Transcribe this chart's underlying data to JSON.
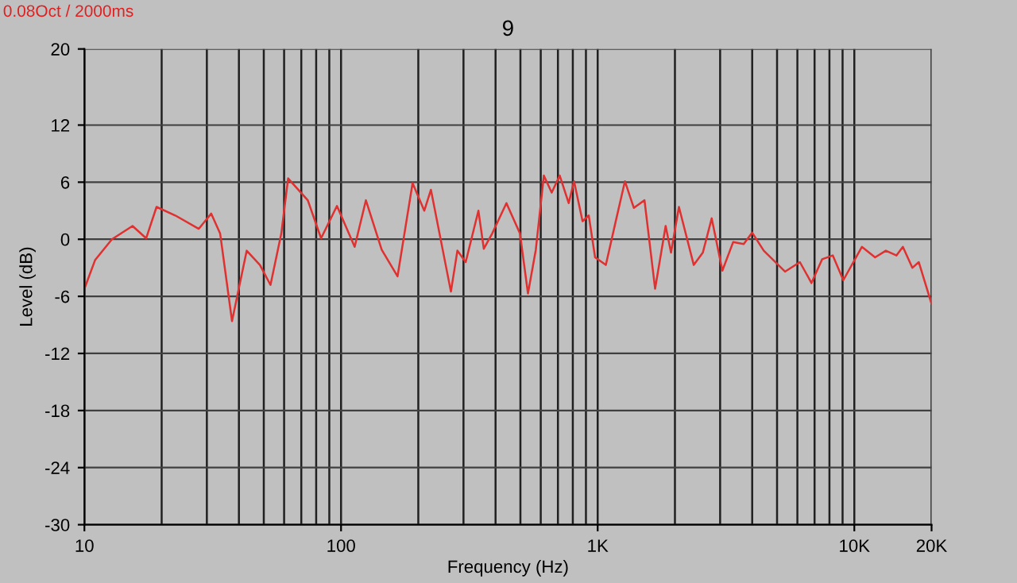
{
  "chart_data": {
    "type": "line",
    "title": "9",
    "xlabel": "Frequency (Hz)",
    "ylabel": "Level (dB)",
    "annotations": [
      "0.08Oct / 2000ms"
    ],
    "log": "x",
    "grid": true,
    "xlim": [
      10,
      20000
    ],
    "xticks": [
      10,
      100,
      {
        "value": 1000,
        "label": "1K"
      },
      {
        "value": 10000,
        "label": "10K"
      },
      {
        "value": 20000,
        "label": "20K"
      }
    ],
    "ylim": [
      -30,
      20
    ],
    "yticks": [
      -30,
      -24,
      -18,
      -12,
      -6,
      0,
      6,
      12,
      20
    ],
    "series": [
      {
        "color": "#e03030",
        "x": [
          10,
          11,
          12.8,
          15.4,
          17.4,
          19.1,
          22.6,
          27.9,
          31.2,
          33.8,
          37.6,
          42.9,
          48.3,
          53.1,
          58.5,
          62.2,
          74.2,
          83.6,
          96.4,
          113,
          125,
          144,
          166,
          190,
          211,
          224,
          268,
          284,
          306,
          343,
          360,
          388,
          441,
          498,
          535,
          574,
          617,
          662,
          711,
          771,
          809,
          873,
          923,
          977,
          1076,
          1183,
          1277,
          1383,
          1522,
          1674,
          1840,
          1931,
          2073,
          2368,
          2569,
          2782,
          3061,
          3371,
          3707,
          4000,
          4438,
          5369,
          6136,
          6810,
          7490,
          8240,
          9060,
          10700,
          12050,
          13270,
          14600,
          15460,
          16840,
          17830,
          20000
        ],
        "values": [
          -5.2,
          -2.2,
          0,
          1.4,
          0.1,
          3.4,
          2.5,
          1.1,
          2.7,
          0.6,
          -8.6,
          -1.2,
          -2.7,
          -4.8,
          0.6,
          6.4,
          4.1,
          0.1,
          3.5,
          -0.8,
          4.1,
          -1.1,
          -3.9,
          5.9,
          3.0,
          5.2,
          -5.5,
          -1.2,
          -2.4,
          3.0,
          -1.0,
          0.6,
          3.8,
          0.6,
          -5.7,
          -1.1,
          6.7,
          4.9,
          6.7,
          3.8,
          6.1,
          1.9,
          2.5,
          -1.9,
          -2.7,
          2.2,
          6.1,
          3.3,
          4.1,
          -5.2,
          1.4,
          -1.4,
          3.4,
          -2.7,
          -1.4,
          2.2,
          -3.3,
          -0.3,
          -0.5,
          0.7,
          -1.2,
          -3.4,
          -2.4,
          -4.6,
          -2.1,
          -1.7,
          -4.3,
          -0.8,
          -1.9,
          -1.2,
          -1.7,
          -0.8,
          -3.0,
          -2.4,
          -6.8
        ]
      }
    ]
  }
}
